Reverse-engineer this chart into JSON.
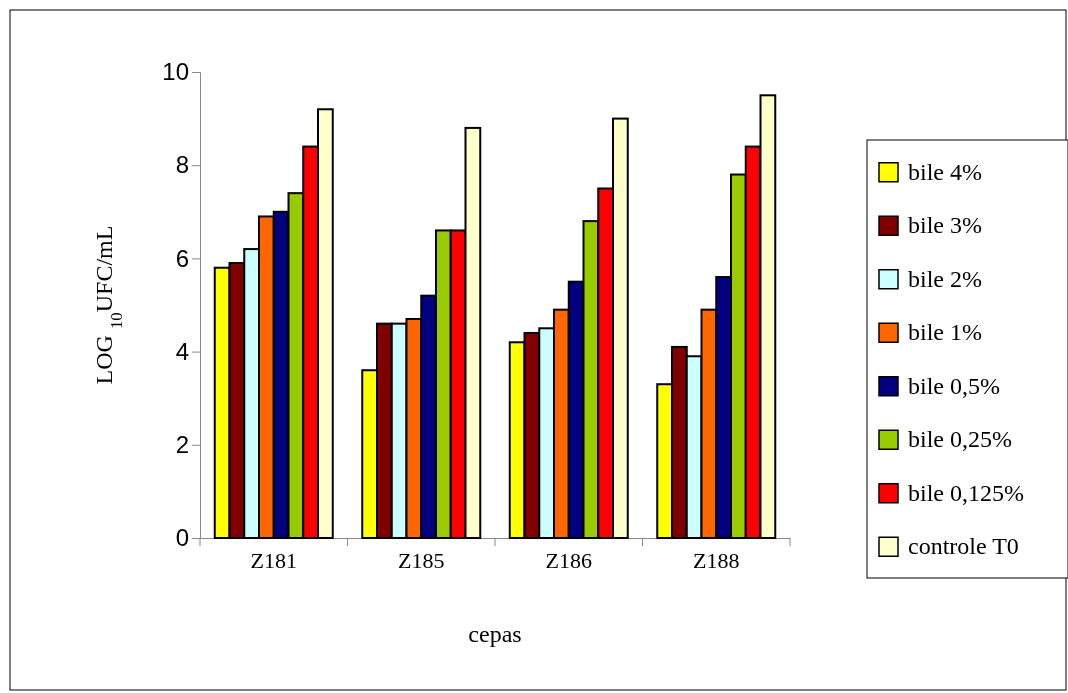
{
  "chart_data": {
    "type": "bar",
    "xlabel": "cepas",
    "ylabel": "LOG $_{10}$UFC/mL",
    "categories": [
      "Z181",
      "Z185",
      "Z186",
      "Z188"
    ],
    "ylim": [
      0,
      10
    ],
    "yticks": [
      0,
      2,
      4,
      6,
      8,
      10
    ],
    "grid": false,
    "legend": "right",
    "series": [
      {
        "name": "bile 4%",
        "color": "#ffff00",
        "values": [
          5.8,
          3.6,
          4.2,
          3.3
        ]
      },
      {
        "name": "bile 3%",
        "color": "#800000",
        "values": [
          5.9,
          4.6,
          4.4,
          4.1
        ]
      },
      {
        "name": "bile 2%",
        "color": "#ccffff",
        "values": [
          6.2,
          4.6,
          4.5,
          3.9
        ]
      },
      {
        "name": "bile 1%",
        "color": "#ff6600",
        "values": [
          6.9,
          4.7,
          4.9,
          4.9
        ]
      },
      {
        "name": "bile 0,5%",
        "color": "#000080",
        "values": [
          7.0,
          5.2,
          5.5,
          5.6
        ]
      },
      {
        "name": "bile 0,25%",
        "color": "#99cc00",
        "values": [
          7.4,
          6.6,
          6.8,
          7.8
        ]
      },
      {
        "name": "bile 0,125%",
        "color": "#ff0000",
        "values": [
          8.4,
          6.6,
          7.5,
          8.4
        ]
      },
      {
        "name": "controle T0",
        "color": "#ffffcc",
        "values": [
          9.2,
          8.8,
          9.0,
          9.5
        ]
      }
    ]
  }
}
